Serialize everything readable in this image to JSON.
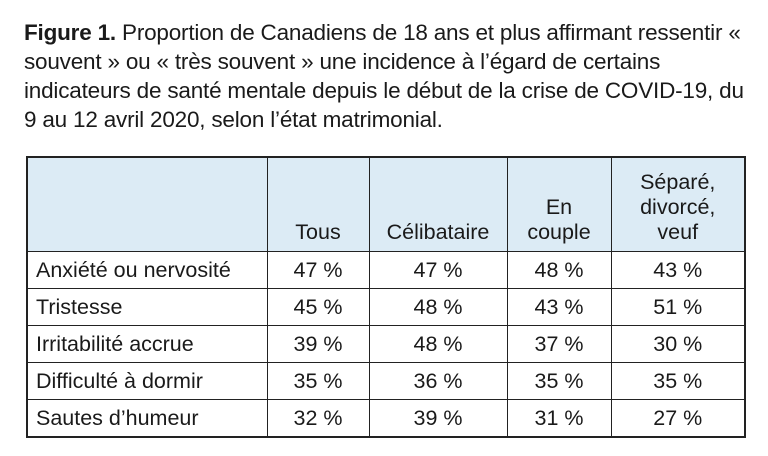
{
  "caption": {
    "label": "Figure 1.",
    "text": " Proportion de Canadiens de 18 ans et plus affirmant ressentir « souvent » ou « très souvent » une incidence à l’égard de certains indicateurs de santé mentale depuis le début de la crise de COVID-19, du 9 au 12 avril 2020, selon l’état matrimonial."
  },
  "table": {
    "header_color": "#dcebf5",
    "columns": [
      "",
      "Tous",
      "Célibataire",
      "En couple",
      "Séparé, divorcé, veuf"
    ],
    "rows": [
      {
        "label": "Anxiété ou nervosité",
        "values": [
          "47 %",
          "47 %",
          "48 %",
          "43 %"
        ]
      },
      {
        "label": "Tristesse",
        "values": [
          "45 %",
          "48 %",
          "43 %",
          "51 %"
        ]
      },
      {
        "label": "Irritabilité accrue",
        "values": [
          "39 %",
          "48 %",
          "37 %",
          "30 %"
        ]
      },
      {
        "label": "Difficulté à dormir",
        "values": [
          "35 %",
          "36 %",
          "35 %",
          "35 %"
        ]
      },
      {
        "label": "Sautes d’humeur",
        "values": [
          "32 %",
          "39 %",
          "31 %",
          "27 %"
        ]
      }
    ]
  }
}
